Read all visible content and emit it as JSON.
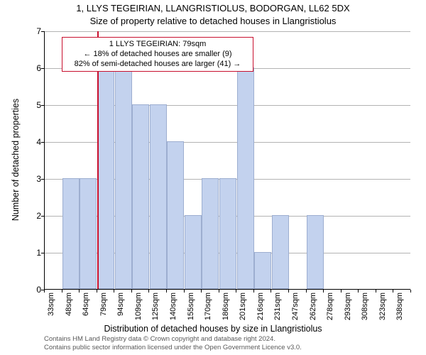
{
  "chart": {
    "type": "bar",
    "title_line1": "1, LLYS TEGEIRIAN, LLANGRISTIOLUS, BODORGAN, LL62 5DX",
    "title_line2": "Size of property relative to detached houses in Llangristiolus",
    "title_fontsize": 13,
    "ylabel": "Number of detached properties",
    "xlabel": "Distribution of detached houses by size in Llangristiolus",
    "label_fontsize": 12.5,
    "ylim": [
      0,
      7
    ],
    "ytick_step": 1,
    "background_color": "#ffffff",
    "grid_color": "#b3b3b3",
    "bar_color": "#c3d2ee",
    "bar_edge_color": "#9daed0",
    "reference_line_color": "#c8102e",
    "reference_x": 79,
    "bar_width_units": 15,
    "x_start": 33,
    "x_bin_width": 15,
    "categories": [
      "33sqm",
      "48sqm",
      "64sqm",
      "79sqm",
      "94sqm",
      "109sqm",
      "125sqm",
      "140sqm",
      "155sqm",
      "170sqm",
      "186sqm",
      "201sqm",
      "216sqm",
      "231sqm",
      "247sqm",
      "262sqm",
      "278sqm",
      "293sqm",
      "308sqm",
      "323sqm",
      "338sqm"
    ],
    "values": [
      0,
      3,
      3,
      6,
      6,
      5,
      5,
      4,
      2,
      3,
      3,
      6,
      1,
      2,
      0,
      2,
      0,
      0,
      0,
      0,
      0
    ],
    "annotation": {
      "line1": "1 LLYS TEGEIRIAN: 79sqm",
      "line2": "← 18% of detached houses are smaller (9)",
      "line3": "82% of semi-detached houses are larger (41) →",
      "border_color": "#c8102e",
      "fontsize": 11
    },
    "footer_line1": "Contains HM Land Registry data © Crown copyright and database right 2024.",
    "footer_line2": "Contains public sector information licensed under the Open Government Licence v3.0.",
    "footer_color": "#595959",
    "footer_fontsize": 9.5,
    "tick_fontsize": 12
  }
}
